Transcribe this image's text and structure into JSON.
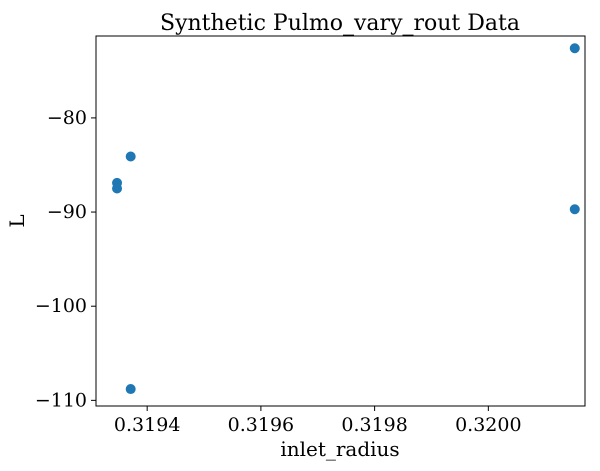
{
  "chart_data": {
    "type": "scatter",
    "title": "Synthetic Pulmo_vary_rout Data",
    "xlabel": "inlet_radius",
    "ylabel": "L",
    "xlim": [
      0.31931,
      0.32017
    ],
    "ylim": [
      -110.6,
      -71.3
    ],
    "xticks": [
      {
        "value": 0.3194,
        "label": "0.3194"
      },
      {
        "value": 0.3196,
        "label": "0.3196"
      },
      {
        "value": 0.3198,
        "label": "0.3198"
      },
      {
        "value": 0.32,
        "label": "0.3200"
      }
    ],
    "yticks": [
      {
        "value": -80,
        "label": "−80"
      },
      {
        "value": -90,
        "label": "−90"
      },
      {
        "value": -100,
        "label": "−100"
      },
      {
        "value": -110,
        "label": "−110"
      }
    ],
    "points": [
      {
        "x": 0.319347,
        "y": -86.9
      },
      {
        "x": 0.319347,
        "y": -87.5
      },
      {
        "x": 0.319371,
        "y": -84.1
      },
      {
        "x": 0.319371,
        "y": -108.8
      },
      {
        "x": 0.320152,
        "y": -72.6
      },
      {
        "x": 0.320152,
        "y": -89.7
      }
    ],
    "marker_color": "#1f77b4",
    "grid": false,
    "legend": false
  }
}
